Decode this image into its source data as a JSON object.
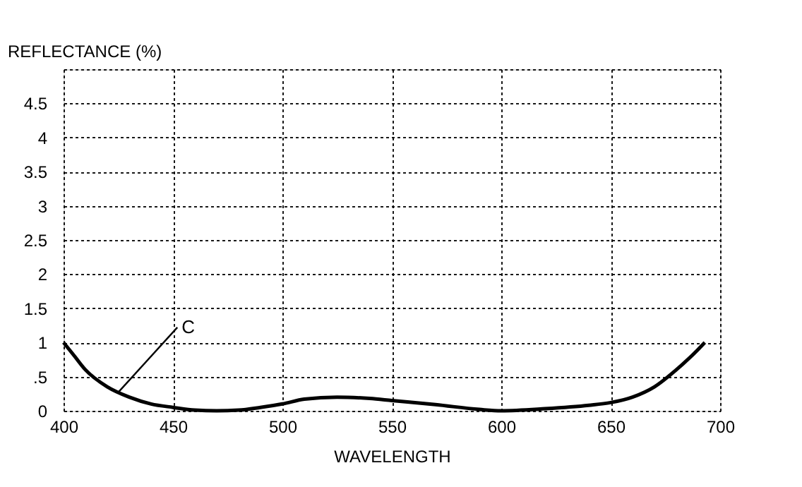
{
  "chart_data": {
    "type": "line",
    "xlabel": "WAVELENGTH",
    "ylabel": "REFLECTANCE (%)",
    "x": [
      400,
      405,
      410,
      420,
      430,
      440,
      450,
      460,
      470,
      480,
      490,
      500,
      510,
      525,
      540,
      550,
      570,
      590,
      600,
      620,
      640,
      650,
      660,
      670,
      680,
      690,
      693
    ],
    "series": [
      {
        "color": "#000000",
        "values": [
          1.0,
          0.8,
          0.6,
          0.35,
          0.2,
          0.1,
          0.05,
          0.01,
          0.0,
          0.01,
          0.05,
          0.1,
          0.17,
          0.2,
          0.18,
          0.15,
          0.09,
          0.02,
          0.0,
          0.03,
          0.08,
          0.12,
          0.2,
          0.35,
          0.6,
          0.9,
          1.0
        ]
      }
    ],
    "xlim": [
      400,
      700
    ],
    "xticks": [
      400,
      450,
      500,
      550,
      600,
      650,
      700
    ],
    "ylim": [
      0,
      5
    ],
    "yticks": [
      0,
      {
        "value": 0.5,
        "label": ".5"
      },
      1,
      1.5,
      2,
      2.5,
      3,
      3.5,
      4,
      4.5,
      {
        "value": 5,
        "label": null
      }
    ],
    "grid": true,
    "line_style": "solid",
    "marker": "none",
    "annotations": [
      {
        "text": "C",
        "x": 425,
        "y": 0.27
      }
    ]
  }
}
